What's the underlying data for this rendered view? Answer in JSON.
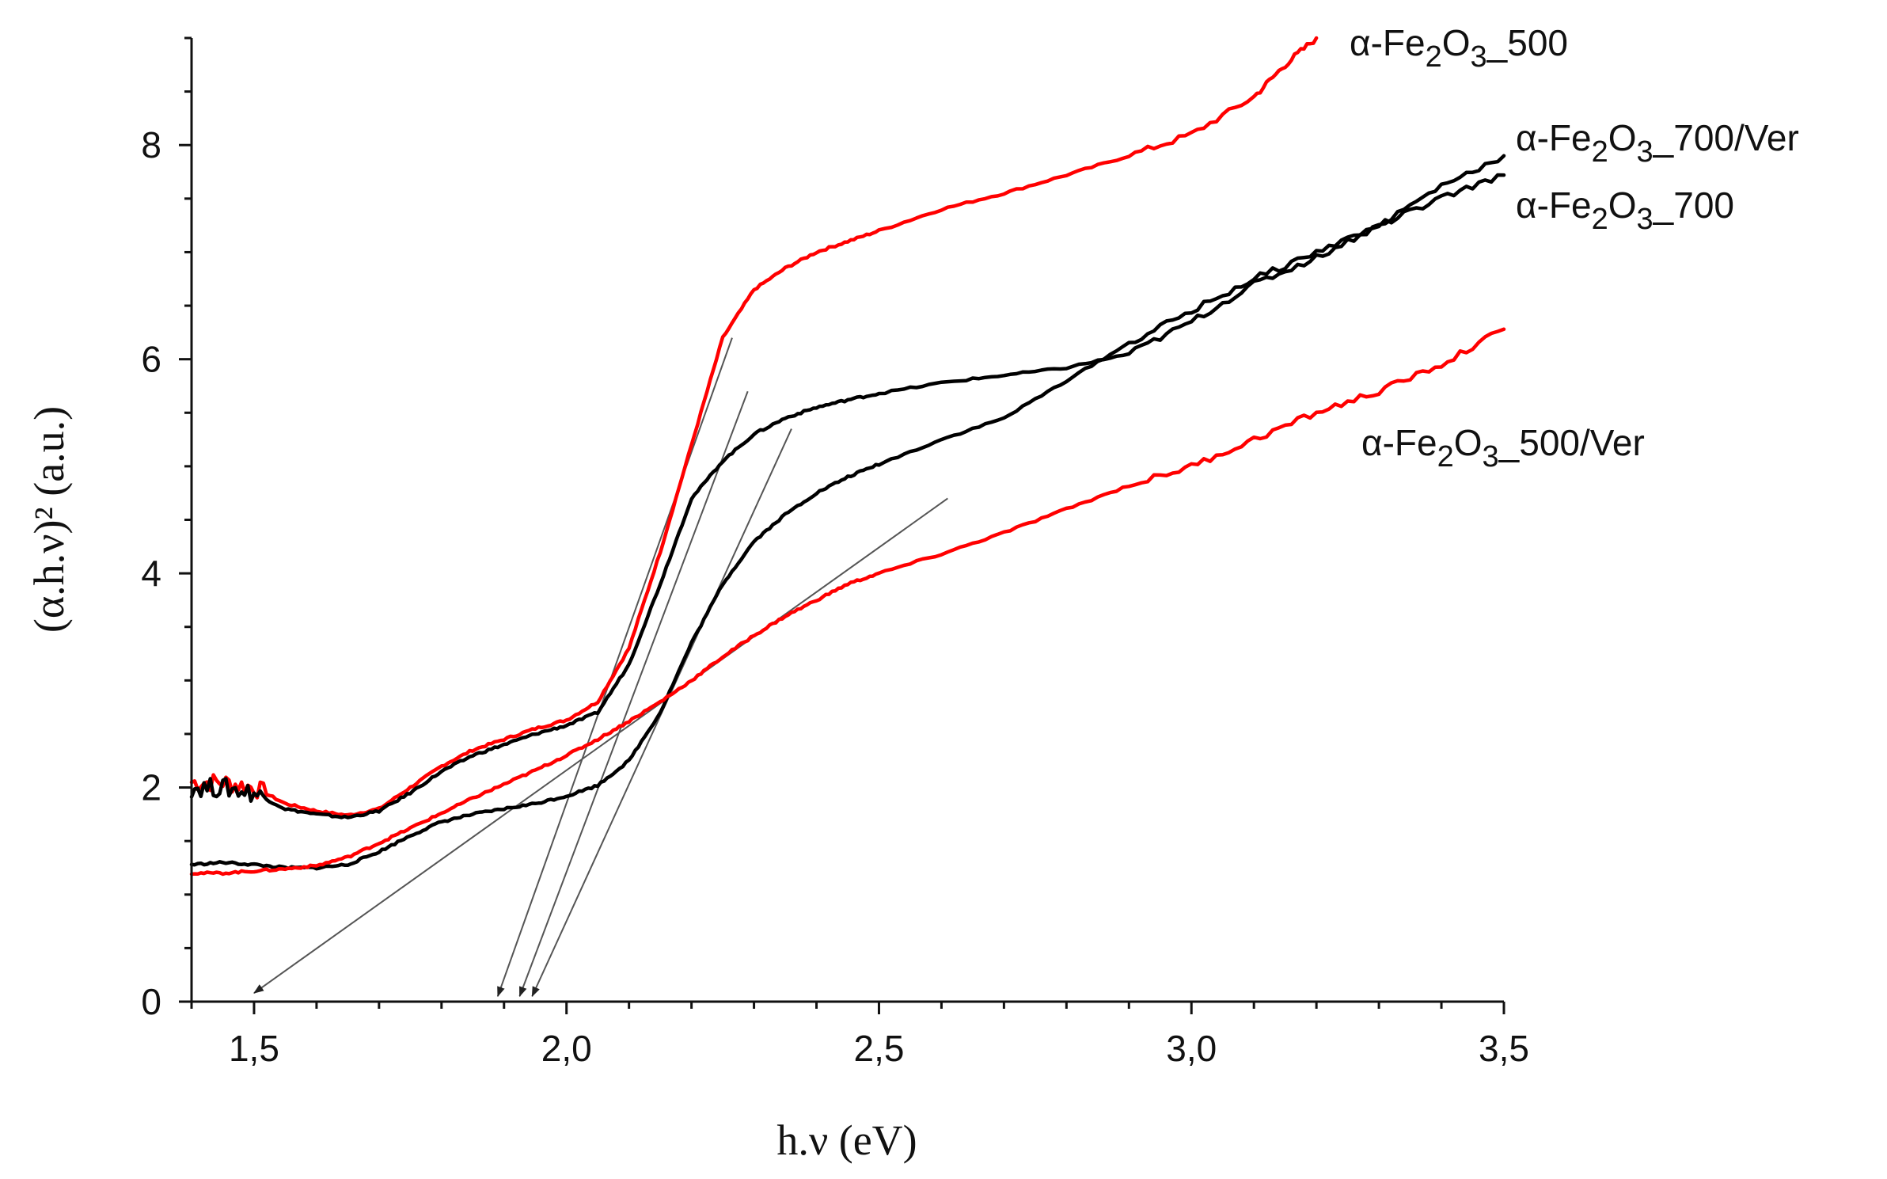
{
  "chart_data": {
    "type": "line",
    "title": "",
    "xlabel": "h.ν (eV)",
    "ylabel": "(α.h.ν)² (a.u.)",
    "xlim": [
      1.4,
      3.5
    ],
    "ylim": [
      0,
      9
    ],
    "x_ticks": [
      1.5,
      2.0,
      2.5,
      3.0,
      3.5
    ],
    "x_tick_labels": [
      "1,5",
      "2,0",
      "2,5",
      "3,0",
      "3,5"
    ],
    "y_ticks": [
      0,
      2,
      4,
      6,
      8
    ],
    "y_tick_labels": [
      "0",
      "2",
      "4",
      "6",
      "8"
    ],
    "grid": false,
    "legend_position": "right, labels next to curve ends",
    "series": [
      {
        "name": "α-Fe2O3_500",
        "label_prefix": "α-Fe",
        "label_sub1": "2",
        "label_mid": "O",
        "label_sub2": "3",
        "label_suffix": "_500",
        "color": "#ff0000",
        "points": [
          [
            1.4,
            2.05
          ],
          [
            1.45,
            2.05
          ],
          [
            1.5,
            2.0
          ],
          [
            1.55,
            1.85
          ],
          [
            1.6,
            1.78
          ],
          [
            1.65,
            1.74
          ],
          [
            1.7,
            1.8
          ],
          [
            1.75,
            2.0
          ],
          [
            1.8,
            2.2
          ],
          [
            1.85,
            2.35
          ],
          [
            1.9,
            2.45
          ],
          [
            1.95,
            2.55
          ],
          [
            2.0,
            2.63
          ],
          [
            2.05,
            2.8
          ],
          [
            2.1,
            3.3
          ],
          [
            2.15,
            4.2
          ],
          [
            2.2,
            5.2
          ],
          [
            2.25,
            6.2
          ],
          [
            2.3,
            6.65
          ],
          [
            2.35,
            6.85
          ],
          [
            2.4,
            7.0
          ],
          [
            2.45,
            7.1
          ],
          [
            2.5,
            7.2
          ],
          [
            2.6,
            7.4
          ],
          [
            2.7,
            7.55
          ],
          [
            2.8,
            7.72
          ],
          [
            2.9,
            7.9
          ],
          [
            3.0,
            8.1
          ],
          [
            3.1,
            8.45
          ],
          [
            3.15,
            8.75
          ],
          [
            3.2,
            9.0
          ]
        ]
      },
      {
        "name": "α-Fe2O3_700/Ver",
        "label_prefix": "α-Fe",
        "label_sub1": "2",
        "label_mid": "O",
        "label_sub2": "3",
        "label_suffix": "_700/Ver",
        "color": "#000000",
        "points": [
          [
            1.4,
            2.0
          ],
          [
            1.45,
            2.0
          ],
          [
            1.5,
            1.95
          ],
          [
            1.55,
            1.8
          ],
          [
            1.6,
            1.75
          ],
          [
            1.65,
            1.72
          ],
          [
            1.7,
            1.78
          ],
          [
            1.75,
            1.95
          ],
          [
            1.8,
            2.15
          ],
          [
            1.85,
            2.3
          ],
          [
            1.9,
            2.4
          ],
          [
            1.95,
            2.5
          ],
          [
            2.0,
            2.58
          ],
          [
            2.05,
            2.7
          ],
          [
            2.1,
            3.15
          ],
          [
            2.15,
            3.9
          ],
          [
            2.2,
            4.7
          ],
          [
            2.25,
            5.05
          ],
          [
            2.3,
            5.3
          ],
          [
            2.35,
            5.45
          ],
          [
            2.4,
            5.55
          ],
          [
            2.45,
            5.62
          ],
          [
            2.5,
            5.68
          ],
          [
            2.6,
            5.78
          ],
          [
            2.7,
            5.85
          ],
          [
            2.8,
            5.92
          ],
          [
            2.9,
            6.05
          ],
          [
            3.0,
            6.35
          ],
          [
            3.1,
            6.7
          ],
          [
            3.2,
            6.95
          ],
          [
            3.3,
            7.25
          ],
          [
            3.4,
            7.62
          ],
          [
            3.5,
            7.9
          ]
        ]
      },
      {
        "name": "α-Fe2O3_700",
        "label_prefix": "α-Fe",
        "label_sub1": "2",
        "label_mid": "O",
        "label_sub2": "3",
        "label_suffix": "_700",
        "color": "#000000",
        "points": [
          [
            1.4,
            1.28
          ],
          [
            1.45,
            1.3
          ],
          [
            1.5,
            1.28
          ],
          [
            1.55,
            1.25
          ],
          [
            1.6,
            1.25
          ],
          [
            1.65,
            1.28
          ],
          [
            1.7,
            1.4
          ],
          [
            1.75,
            1.55
          ],
          [
            1.8,
            1.68
          ],
          [
            1.85,
            1.75
          ],
          [
            1.9,
            1.8
          ],
          [
            1.95,
            1.85
          ],
          [
            2.0,
            1.92
          ],
          [
            2.05,
            2.02
          ],
          [
            2.1,
            2.25
          ],
          [
            2.15,
            2.7
          ],
          [
            2.2,
            3.35
          ],
          [
            2.25,
            3.9
          ],
          [
            2.3,
            4.3
          ],
          [
            2.35,
            4.55
          ],
          [
            2.4,
            4.75
          ],
          [
            2.45,
            4.9
          ],
          [
            2.5,
            5.02
          ],
          [
            2.6,
            5.25
          ],
          [
            2.7,
            5.45
          ],
          [
            2.8,
            5.8
          ],
          [
            2.9,
            6.15
          ],
          [
            3.0,
            6.45
          ],
          [
            3.1,
            6.75
          ],
          [
            3.2,
            7.0
          ],
          [
            3.3,
            7.25
          ],
          [
            3.4,
            7.5
          ],
          [
            3.5,
            7.72
          ]
        ]
      },
      {
        "name": "α-Fe2O3_500/Ver",
        "label_prefix": "α-Fe",
        "label_sub1": "2",
        "label_mid": "O",
        "label_sub2": "3",
        "label_suffix": "_500/Ver",
        "color": "#ff0000",
        "points": [
          [
            1.4,
            1.2
          ],
          [
            1.45,
            1.2
          ],
          [
            1.5,
            1.22
          ],
          [
            1.55,
            1.24
          ],
          [
            1.6,
            1.27
          ],
          [
            1.65,
            1.35
          ],
          [
            1.7,
            1.48
          ],
          [
            1.75,
            1.62
          ],
          [
            1.8,
            1.76
          ],
          [
            1.85,
            1.9
          ],
          [
            1.9,
            2.03
          ],
          [
            1.95,
            2.16
          ],
          [
            2.0,
            2.3
          ],
          [
            2.05,
            2.45
          ],
          [
            2.1,
            2.62
          ],
          [
            2.15,
            2.8
          ],
          [
            2.2,
            3.0
          ],
          [
            2.25,
            3.22
          ],
          [
            2.3,
            3.42
          ],
          [
            2.35,
            3.6
          ],
          [
            2.4,
            3.75
          ],
          [
            2.45,
            3.9
          ],
          [
            2.5,
            4.0
          ],
          [
            2.6,
            4.18
          ],
          [
            2.7,
            4.38
          ],
          [
            2.8,
            4.6
          ],
          [
            2.9,
            4.82
          ],
          [
            3.0,
            5.0
          ],
          [
            3.1,
            5.25
          ],
          [
            3.2,
            5.5
          ],
          [
            3.3,
            5.7
          ],
          [
            3.4,
            5.95
          ],
          [
            3.5,
            6.28
          ]
        ]
      }
    ],
    "tangent_lines": [
      {
        "from": [
          2.265,
          6.2
        ],
        "to": [
          1.89,
          0.05
        ],
        "arrow": true
      },
      {
        "from": [
          2.29,
          5.7
        ],
        "to": [
          1.925,
          0.05
        ],
        "arrow": true
      },
      {
        "from": [
          2.36,
          5.35
        ],
        "to": [
          1.945,
          0.05
        ],
        "arrow": true
      },
      {
        "from": [
          2.61,
          4.7
        ],
        "to": [
          1.5,
          0.08
        ],
        "arrow": true
      }
    ]
  }
}
